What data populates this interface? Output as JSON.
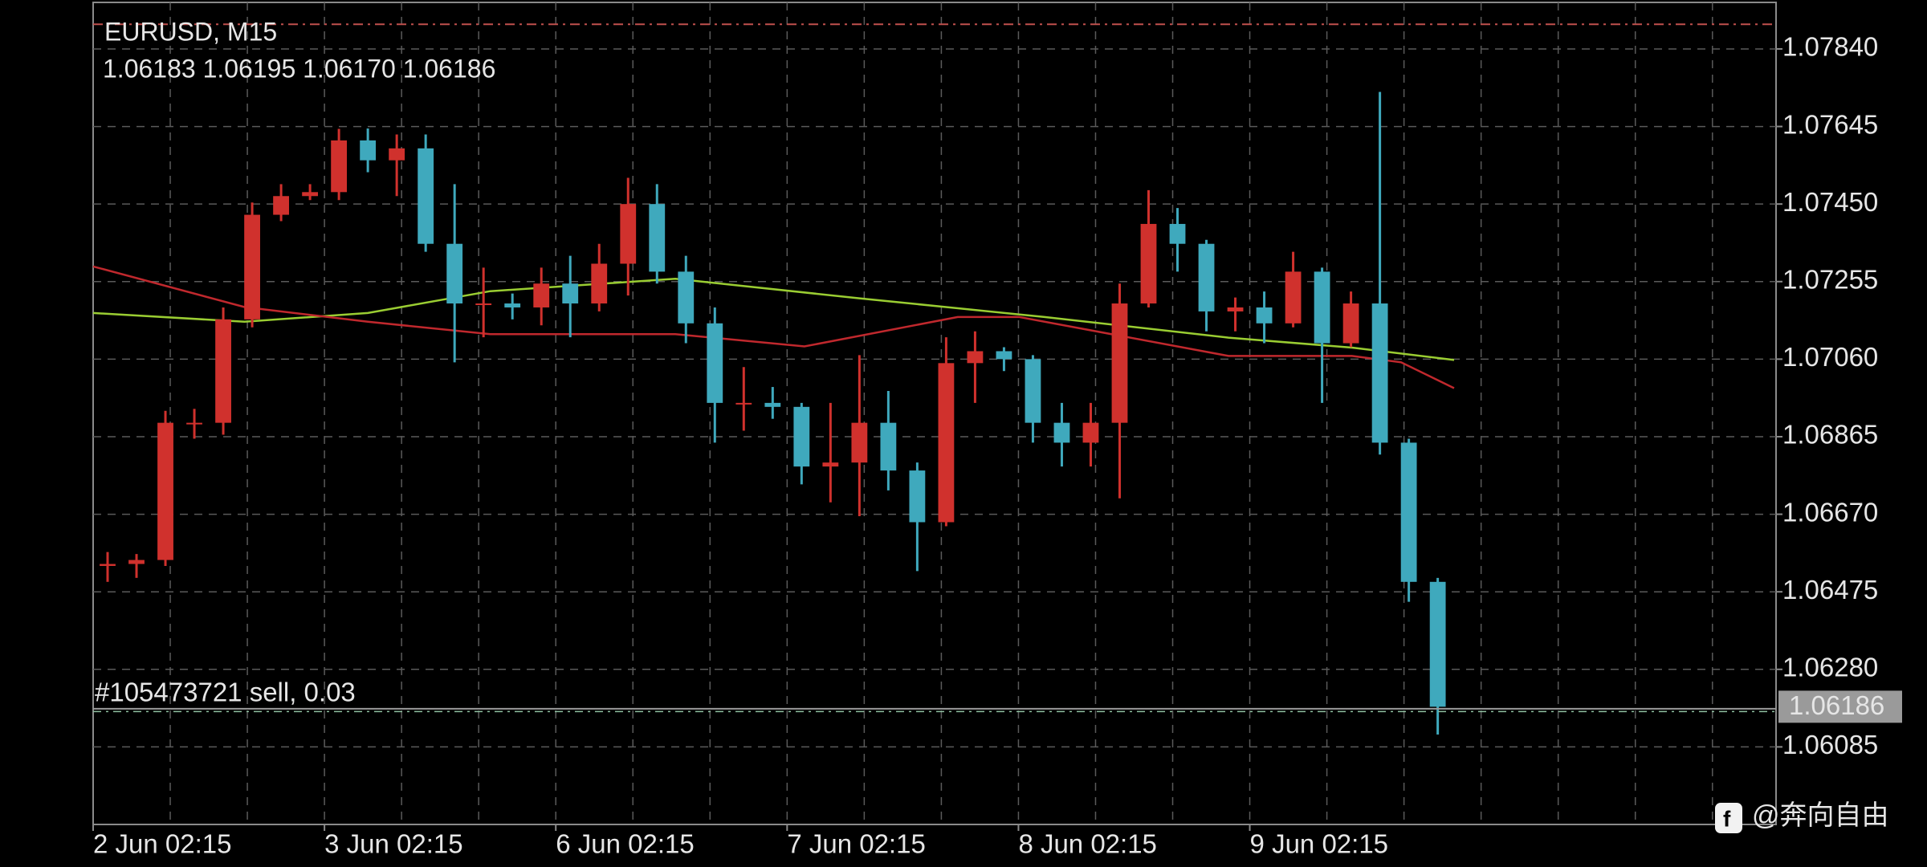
{
  "chart_data": {
    "type": "candlestick",
    "title": "EURUSD, M15",
    "ohlc_text": "1.06183 1.06195 1.06170 1.06186",
    "up_color": "#d0312d",
    "down_color": "#3fa9bd",
    "xlim": [
      0,
      174.6
    ],
    "ylim": [
      1.0589,
      1.07957
    ],
    "grid": true,
    "xticks": [
      {
        "value": 0,
        "label": "2 Jun 02:15"
      },
      {
        "value": 24,
        "label": "3 Jun 02:15"
      },
      {
        "value": 48,
        "label": "6 Jun 02:15"
      },
      {
        "value": 72,
        "label": "7 Jun 02:15"
      },
      {
        "value": 96,
        "label": "8 Jun 02:15"
      },
      {
        "value": 120,
        "label": "9 Jun 02:15"
      }
    ],
    "xgridlines": [
      8,
      16,
      24,
      32,
      40,
      48,
      56,
      64,
      72,
      80,
      88,
      96,
      104,
      112,
      120,
      128,
      136,
      144,
      152,
      160,
      168
    ],
    "yticks": [
      {
        "value": 1.0784,
        "label": "1.07840"
      },
      {
        "value": 1.07645,
        "label": "1.07645"
      },
      {
        "value": 1.0745,
        "label": "1.07450"
      },
      {
        "value": 1.07255,
        "label": "1.07255"
      },
      {
        "value": 1.0706,
        "label": "1.07060"
      },
      {
        "value": 1.06865,
        "label": "1.06865"
      },
      {
        "value": 1.0667,
        "label": "1.06670"
      },
      {
        "value": 1.06475,
        "label": "1.06475"
      },
      {
        "value": 1.0628,
        "label": "1.06280"
      },
      {
        "value": 1.06085,
        "label": "1.06085"
      }
    ],
    "x": [
      0,
      3,
      6,
      9,
      12,
      15,
      18,
      21,
      24,
      27,
      30,
      33,
      36,
      39,
      42,
      45,
      48,
      51,
      54,
      57,
      60,
      63,
      66,
      69,
      72,
      75,
      78,
      81,
      84,
      87,
      90,
      93,
      96,
      99,
      102,
      105,
      108,
      111,
      114,
      117,
      120,
      123,
      126,
      129,
      132,
      135,
      138
    ],
    "open": [
      1.0654,
      1.06545,
      1.06555,
      1.069,
      1.069,
      1.0716,
      1.07423,
      1.0747,
      1.0748,
      1.0761,
      1.0756,
      1.0759,
      1.0735,
      1.072,
      1.072,
      1.0719,
      1.0725,
      1.072,
      1.073,
      1.0745,
      1.0728,
      1.0715,
      1.0695,
      1.0695,
      1.0694,
      1.0679,
      1.068,
      1.069,
      1.0678,
      1.0665,
      1.0705,
      1.0708,
      1.0706,
      1.069,
      1.0685,
      1.069,
      1.072,
      1.074,
      1.0735,
      1.0718,
      1.0719,
      1.0715,
      1.0728,
      1.071,
      1.072,
      1.0685,
      1.065
    ],
    "high": [
      1.06575,
      1.0657,
      1.0693,
      1.06935,
      1.0719,
      1.07454,
      1.075,
      1.075,
      1.07639,
      1.0764,
      1.07625,
      1.07625,
      1.075,
      1.0729,
      1.07225,
      1.0729,
      1.0732,
      1.0735,
      1.07516,
      1.075,
      1.0732,
      1.0719,
      1.0704,
      1.0699,
      1.0695,
      1.0695,
      1.0707,
      1.0698,
      1.068,
      1.07115,
      1.0713,
      1.0709,
      1.0707,
      1.0695,
      1.0695,
      1.0725,
      1.07485,
      1.0744,
      1.0736,
      1.07215,
      1.0723,
      1.0733,
      1.0729,
      1.0723,
      1.07732,
      1.0686,
      1.0651
    ],
    "low": [
      1.065,
      1.0651,
      1.0654,
      1.0686,
      1.0687,
      1.0714,
      1.07407,
      1.0746,
      1.0746,
      1.0753,
      1.0747,
      1.0733,
      1.07052,
      1.07115,
      1.0716,
      1.07145,
      1.07115,
      1.0718,
      1.0722,
      1.0725,
      1.071,
      1.0685,
      1.0688,
      1.0691,
      1.06745,
      1.067,
      1.06665,
      1.0673,
      1.06527,
      1.0664,
      1.0695,
      1.0703,
      1.0685,
      1.0679,
      1.0679,
      1.0671,
      1.0719,
      1.0728,
      1.0713,
      1.0713,
      1.071,
      1.0714,
      1.0695,
      1.0709,
      1.0682,
      1.0645,
      1.06116
    ],
    "close": [
      1.06545,
      1.06555,
      1.069,
      1.069,
      1.0716,
      1.07423,
      1.0747,
      1.0748,
      1.0761,
      1.0756,
      1.0759,
      1.0735,
      1.072,
      1.072,
      1.0719,
      1.0725,
      1.072,
      1.073,
      1.0745,
      1.0728,
      1.0715,
      1.0695,
      1.0695,
      1.0694,
      1.0679,
      1.068,
      1.069,
      1.0678,
      1.0665,
      1.0705,
      1.0708,
      1.0706,
      1.069,
      1.0685,
      1.069,
      1.072,
      1.074,
      1.0735,
      1.0718,
      1.0719,
      1.0715,
      1.0728,
      1.071,
      1.072,
      1.0685,
      1.065,
      1.06186
    ],
    "moving_averages": [
      {
        "color": "#9acd32",
        "x": [
          0,
          15.7,
          28.5,
          41.2,
          60.4,
          79.5,
          98.7,
          117.8,
          130.6,
          141.2
        ],
        "values": [
          1.07176,
          1.07154,
          1.07176,
          1.07231,
          1.07262,
          1.07213,
          1.07166,
          1.07114,
          1.07089,
          1.07058
        ]
      },
      {
        "color": "#c0282d",
        "x": [
          0,
          15.7,
          28.5,
          41.2,
          60.4,
          73.8,
          89.7,
          96.1,
          117.8,
          130.6,
          135.7,
          141.2
        ],
        "values": [
          1.07293,
          1.07191,
          1.07154,
          1.07123,
          1.07123,
          1.07092,
          1.07166,
          1.07166,
          1.07068,
          1.07068,
          1.07052,
          1.06987
        ]
      }
    ],
    "level": {
      "value": 1.07902,
      "color": "#c0504d"
    },
    "order": {
      "label": "#105473721 sell, 0.03",
      "value": 1.06181
    },
    "bid": 1.06186,
    "watermark": "@奔向自由"
  }
}
